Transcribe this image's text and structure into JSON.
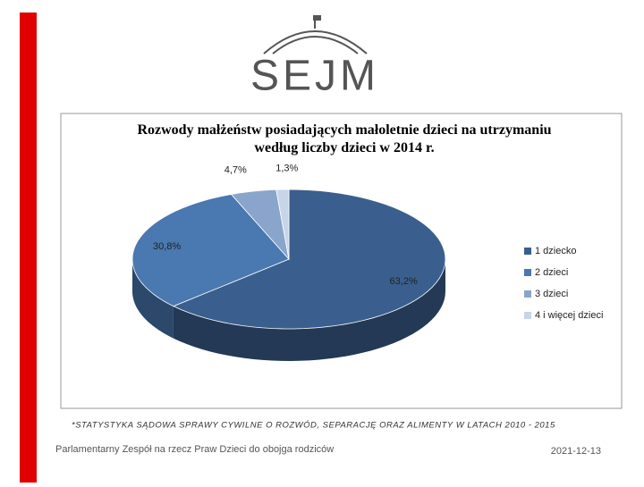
{
  "logo": "SEJM",
  "chart_data": {
    "type": "pie",
    "title": "Rozwody małżeństw posiadających małoletnie dzieci na utrzymaniu według liczby dzieci w 2014 r.",
    "categories": [
      "1 dziecko",
      "2 dzieci",
      "3 dzieci",
      "4 i więcej dzieci"
    ],
    "values": [
      63.2,
      30.8,
      4.7,
      1.3
    ],
    "value_labels": [
      "63,2%",
      "30,8%",
      "4,7%",
      "1,3%"
    ],
    "colors": [
      "#3a5f8e",
      "#4a78b0",
      "#8aa5cb",
      "#c8d5e8"
    ],
    "legend": "right"
  },
  "footnote": "*STATYSTYKA SĄDOWA SPRAWY CYWILNE O ROZWÓD, SEPARACJĘ ORAZ ALIMENTY W LATACH 2010 - 2015",
  "footer": {
    "left": "Parlamentarny Zespół na rzecz Praw Dzieci do obojga rodziców",
    "date": "2021-12-13"
  }
}
